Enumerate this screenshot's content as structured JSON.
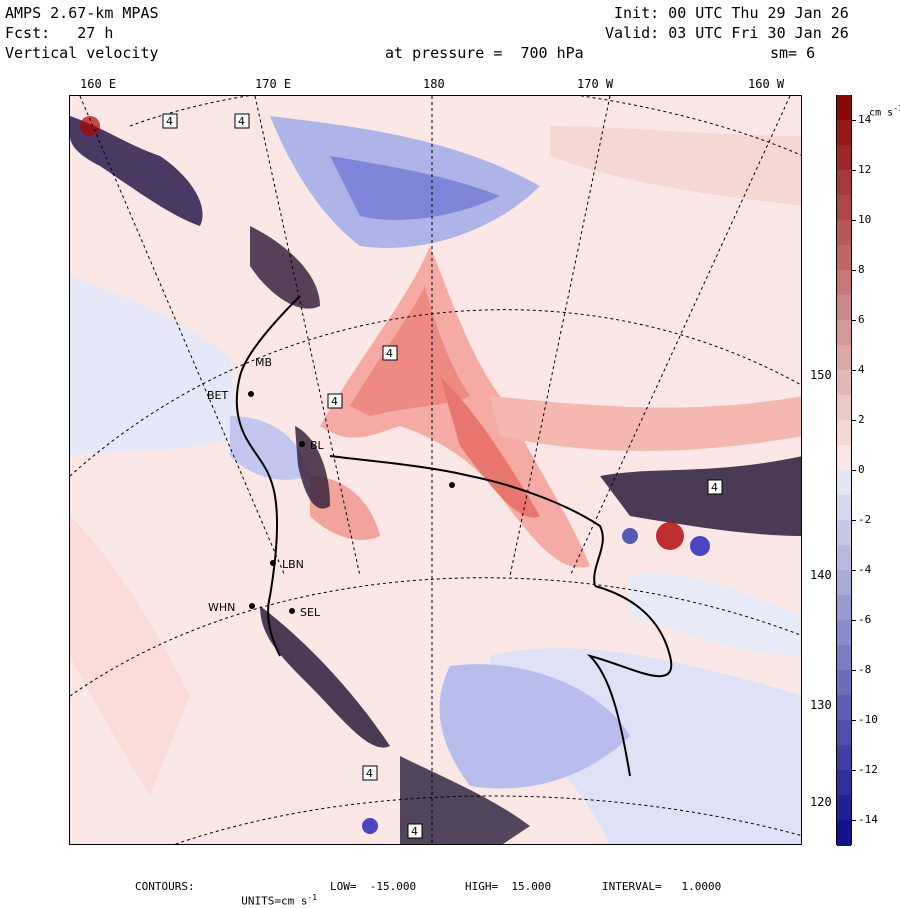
{
  "header": {
    "model": "AMPS 2.67-km MPAS",
    "forecast": "Fcst:   27 h",
    "field": "Vertical velocity",
    "init": "Init: 00 UTC Thu 29 Jan 26",
    "valid": "Valid: 03 UTC Fri 30 Jan 26",
    "pressure": "at pressure =  700 hPa",
    "smoothing": "sm= 6"
  },
  "longitude_labels": [
    "160 E",
    "170 E",
    "180",
    "170 W",
    "160 W"
  ],
  "latitude_labels": [
    "150 W",
    "140 W",
    "130 W",
    "120 W"
  ],
  "stations": [
    "BET",
    "BL",
    "LBN",
    "WHN",
    "SEL",
    "MB"
  ],
  "contour_box_label": "4",
  "colorbar": {
    "units_prefix": "cm s",
    "units_exp": "-1",
    "ticks": [
      "14",
      "12",
      "10",
      "8",
      "6",
      "4",
      "2",
      "0",
      "-2",
      "-4",
      "-6",
      "-8",
      "-10",
      "-12",
      "-14"
    ],
    "levels": [
      -15,
      -14,
      -13,
      -12,
      -11,
      -10,
      -9,
      -8,
      -7,
      -6,
      -5,
      -4,
      -3,
      -2,
      -1,
      0,
      1,
      2,
      3,
      4,
      5,
      6,
      7,
      8,
      9,
      10,
      11,
      12,
      13,
      14,
      15
    ],
    "neg_color_strong": "#0a0a8a",
    "pos_color_strong": "#8a0000"
  },
  "footer": {
    "contours": "CONTOURS:",
    "units_label": "UNITS=cm s",
    "units_exp": "-1",
    "low": "LOW=  -15.000",
    "high": "HIGH=  15.000",
    "interval": "INTERVAL=   1.0000"
  }
}
